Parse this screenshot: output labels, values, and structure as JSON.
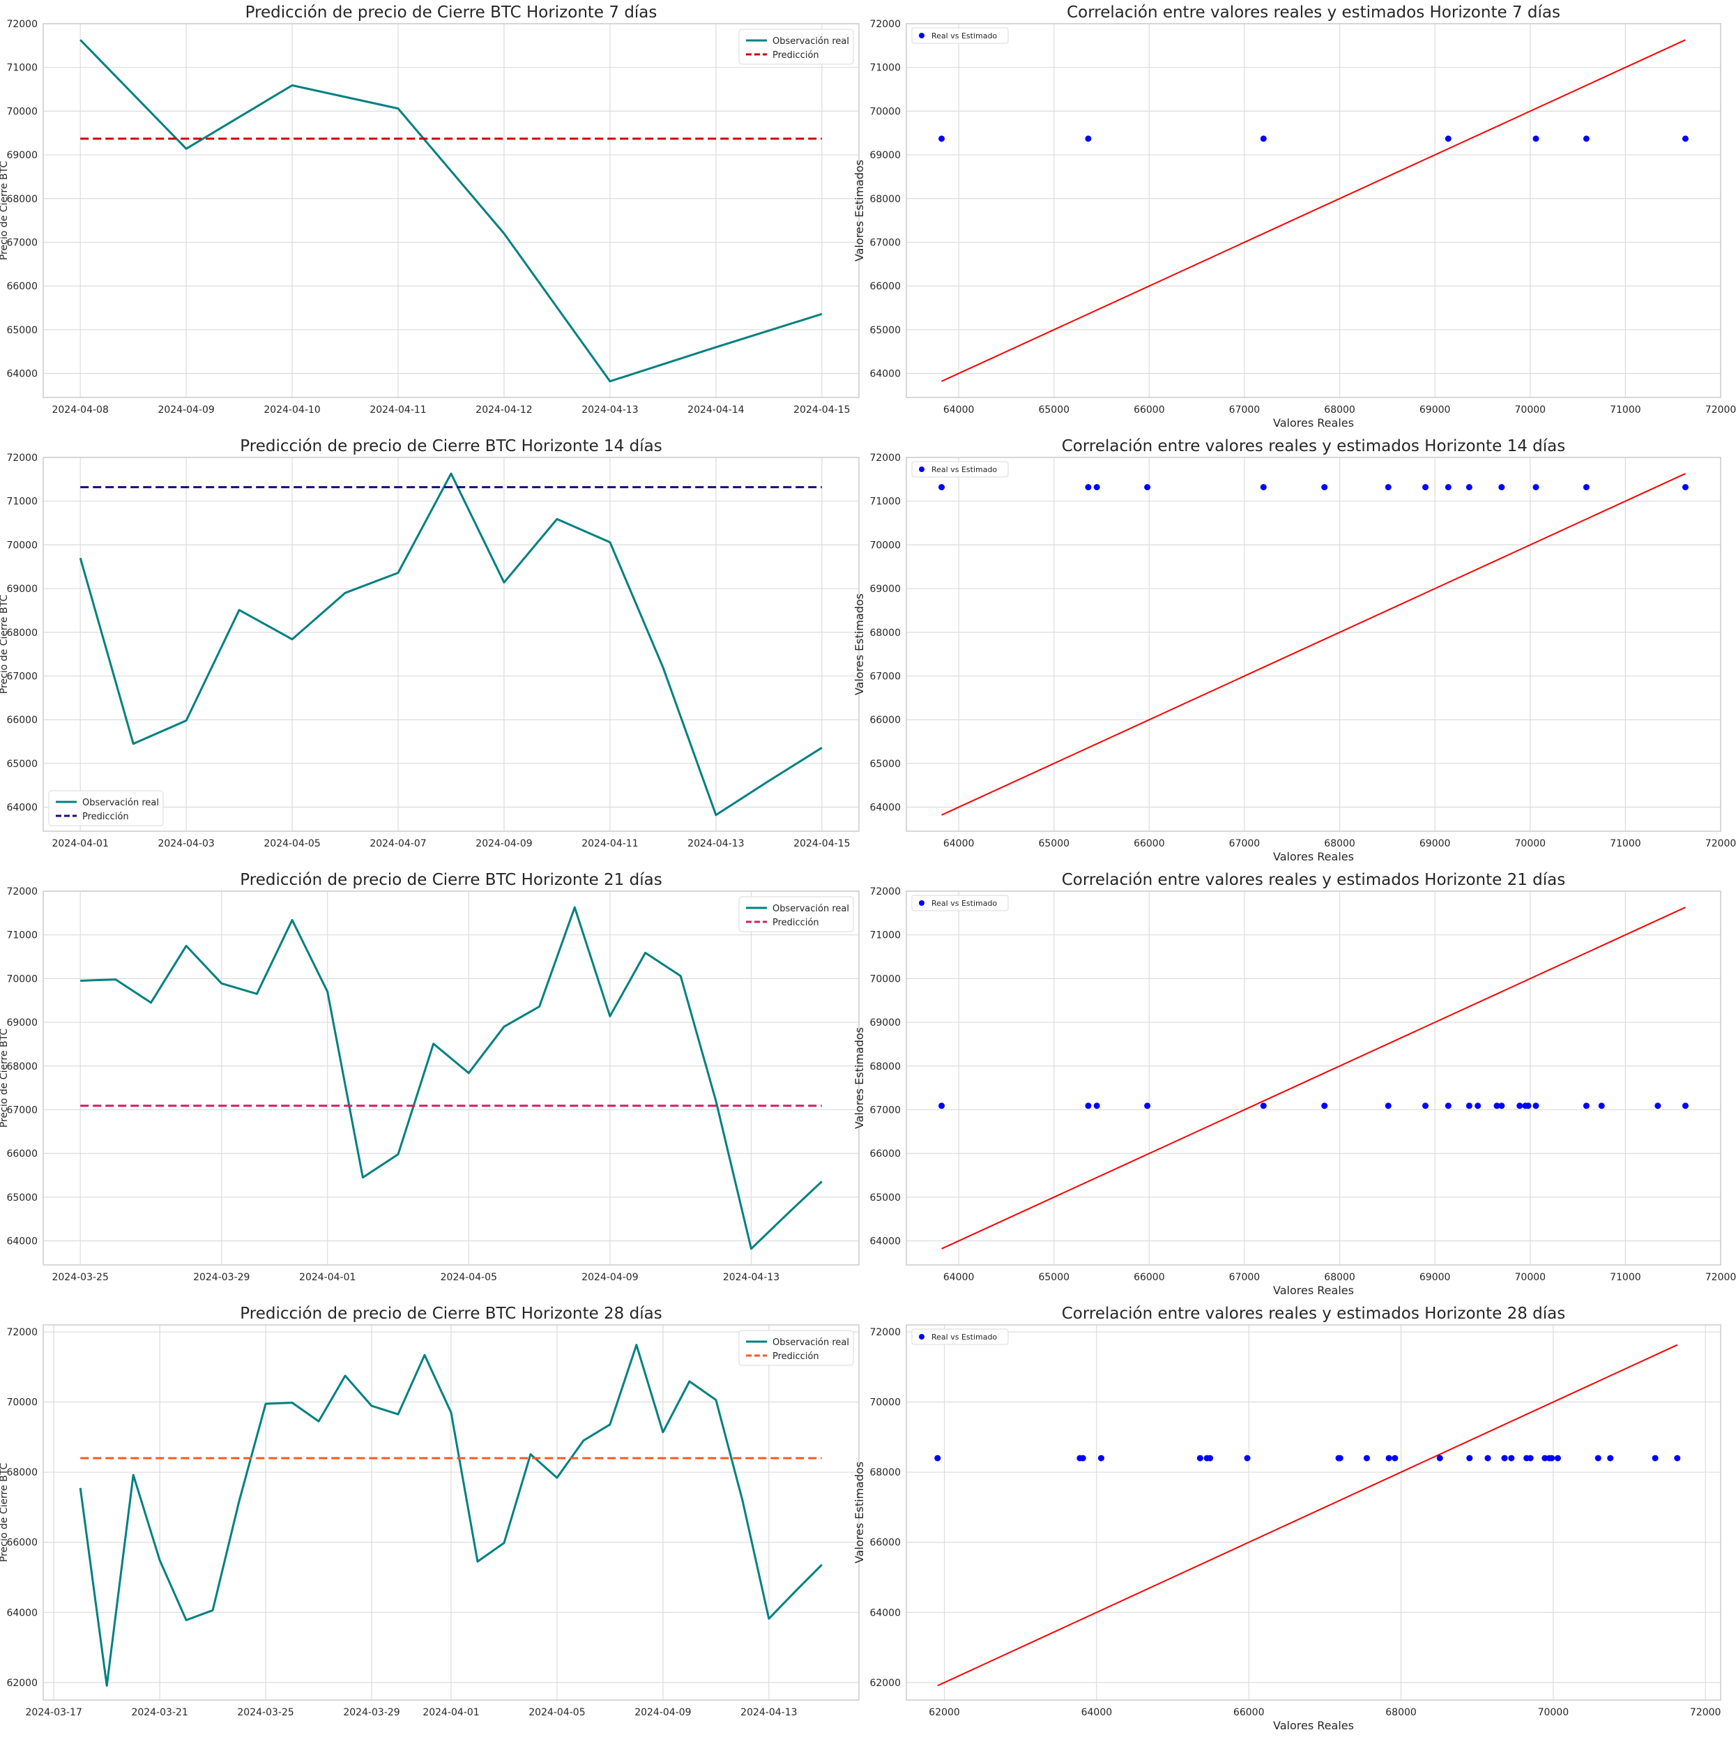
{
  "colors": {
    "observed": "#008080",
    "scatter": "#0000ff",
    "identity": "#ff0000",
    "grid": "#dcdcdc",
    "spine": "#cccccc"
  },
  "chart_data": [
    {
      "type": "line",
      "title": "Predicción de precio de Cierre BTC Horizonte 7 días",
      "xlabel": "",
      "ylabel": "Precio de Cierre BTC",
      "ylim": [
        63450,
        72000
      ],
      "yticks": [
        64000,
        65000,
        66000,
        67000,
        68000,
        69000,
        70000,
        71000,
        72000
      ],
      "x": [
        "2024-04-08",
        "2024-04-09",
        "2024-04-10",
        "2024-04-11",
        "2024-04-12",
        "2024-04-13",
        "2024-04-14",
        "2024-04-15"
      ],
      "xticks": [
        "2024-04-08",
        "2024-04-09",
        "2024-04-10",
        "2024-04-11",
        "2024-04-12",
        "2024-04-13",
        "2024-04-14",
        "2024-04-15"
      ],
      "legend": "upper-right",
      "series": [
        {
          "name": "Observación real",
          "color": "#008080",
          "dash": false,
          "values": [
            71630,
            69140,
            70590,
            70060,
            67200,
            63820,
            64600,
            65360
          ]
        },
        {
          "name": "Predicción",
          "color": "#cc0000",
          "dash": true,
          "values": [
            69370,
            69370,
            69370,
            69370,
            69370,
            69370,
            69370,
            69370
          ]
        }
      ]
    },
    {
      "type": "scatter",
      "title": "Correlación entre valores reales y estimados Horizonte 7 días",
      "xlabel": "Valores Reales",
      "ylabel": "Valores Estimados",
      "xlim": [
        63450,
        72000
      ],
      "ylim": [
        63450,
        72000
      ],
      "xticks": [
        64000,
        65000,
        66000,
        67000,
        68000,
        69000,
        70000,
        71000,
        72000
      ],
      "yticks": [
        64000,
        65000,
        66000,
        67000,
        68000,
        69000,
        70000,
        71000,
        72000
      ],
      "legend": "upper-left",
      "legend_label": "Real vs Estimado",
      "points": {
        "x": [
          63820,
          65360,
          67200,
          69140,
          70060,
          70590,
          71630
        ],
        "y": [
          69370,
          69370,
          69370,
          69370,
          69370,
          69370,
          69370
        ]
      },
      "identity_line": [
        63820,
        71630
      ]
    },
    {
      "type": "line",
      "title": "Predicción de precio de Cierre BTC Horizonte 14 días",
      "xlabel": "",
      "ylabel": "Precio de Cierre BTC",
      "ylim": [
        63450,
        72000
      ],
      "yticks": [
        64000,
        65000,
        66000,
        67000,
        68000,
        69000,
        70000,
        71000,
        72000
      ],
      "x": [
        "2024-04-01",
        "2024-04-02",
        "2024-04-03",
        "2024-04-04",
        "2024-04-05",
        "2024-04-06",
        "2024-04-07",
        "2024-04-08",
        "2024-04-09",
        "2024-04-10",
        "2024-04-11",
        "2024-04-12",
        "2024-04-13",
        "2024-04-14",
        "2024-04-15"
      ],
      "xticks": [
        "2024-04-01",
        "2024-04-03",
        "2024-04-05",
        "2024-04-07",
        "2024-04-09",
        "2024-04-11",
        "2024-04-13",
        "2024-04-15"
      ],
      "legend": "lower-left",
      "series": [
        {
          "name": "Observación real",
          "color": "#008080",
          "dash": false,
          "values": [
            69700,
            65450,
            65980,
            68510,
            67840,
            68900,
            69360,
            71630,
            69140,
            70590,
            70060,
            67200,
            63820,
            64600,
            65360
          ]
        },
        {
          "name": "Predicción",
          "color": "#1a0a80",
          "dash": true,
          "values": [
            71320,
            71320,
            71320,
            71320,
            71320,
            71320,
            71320,
            71320,
            71320,
            71320,
            71320,
            71320,
            71320,
            71320,
            71320
          ]
        }
      ]
    },
    {
      "type": "scatter",
      "title": "Correlación entre valores reales y estimados Horizonte 14 días",
      "xlabel": "Valores Reales",
      "ylabel": "Valores Estimados",
      "xlim": [
        63450,
        72000
      ],
      "ylim": [
        63450,
        72000
      ],
      "xticks": [
        64000,
        65000,
        66000,
        67000,
        68000,
        69000,
        70000,
        71000,
        72000
      ],
      "yticks": [
        64000,
        65000,
        66000,
        67000,
        68000,
        69000,
        70000,
        71000,
        72000
      ],
      "legend": "upper-left",
      "legend_label": "Real vs Estimado",
      "points": {
        "x": [
          63820,
          65360,
          65450,
          65980,
          67200,
          67840,
          68510,
          68900,
          69140,
          69360,
          69700,
          70060,
          70590,
          71630
        ],
        "y": [
          71320,
          71320,
          71320,
          71320,
          71320,
          71320,
          71320,
          71320,
          71320,
          71320,
          71320,
          71320,
          71320,
          71320
        ]
      },
      "identity_line": [
        63820,
        71630
      ]
    },
    {
      "type": "line",
      "title": "Predicción de precio de Cierre BTC Horizonte 21 días",
      "xlabel": "",
      "ylabel": "Precio de Cierre BTC",
      "ylim": [
        63450,
        72000
      ],
      "yticks": [
        64000,
        65000,
        66000,
        67000,
        68000,
        69000,
        70000,
        71000,
        72000
      ],
      "x": [
        "2024-03-25",
        "2024-03-26",
        "2024-03-27",
        "2024-03-28",
        "2024-03-29",
        "2024-03-30",
        "2024-03-31",
        "2024-04-01",
        "2024-04-02",
        "2024-04-03",
        "2024-04-04",
        "2024-04-05",
        "2024-04-06",
        "2024-04-07",
        "2024-04-08",
        "2024-04-09",
        "2024-04-10",
        "2024-04-11",
        "2024-04-12",
        "2024-04-13",
        "2024-04-14",
        "2024-04-15"
      ],
      "xticks": [
        "2024-03-25",
        "2024-03-29",
        "2024-04-01",
        "2024-04-05",
        "2024-04-09",
        "2024-04-13"
      ],
      "legend": "upper-right",
      "series": [
        {
          "name": "Observación real",
          "color": "#008080",
          "dash": false,
          "values": [
            69950,
            69980,
            69450,
            70750,
            69890,
            69650,
            71340,
            69700,
            65450,
            65980,
            68510,
            67840,
            68900,
            69360,
            71630,
            69140,
            70590,
            70060,
            67200,
            63820,
            64600,
            65360
          ]
        },
        {
          "name": "Predicción",
          "color": "#d81b60",
          "dash": true,
          "values": [
            67090,
            67090,
            67090,
            67090,
            67090,
            67090,
            67090,
            67090,
            67090,
            67090,
            67090,
            67090,
            67090,
            67090,
            67090,
            67090,
            67090,
            67090,
            67090,
            67090,
            67090,
            67090
          ]
        }
      ]
    },
    {
      "type": "scatter",
      "title": "Correlación entre valores reales y estimados Horizonte 21 días",
      "xlabel": "Valores Reales",
      "ylabel": "Valores Estimados",
      "xlim": [
        63450,
        72000
      ],
      "ylim": [
        63450,
        72000
      ],
      "xticks": [
        64000,
        65000,
        66000,
        67000,
        68000,
        69000,
        70000,
        71000,
        72000
      ],
      "yticks": [
        64000,
        65000,
        66000,
        67000,
        68000,
        69000,
        70000,
        71000,
        72000
      ],
      "legend": "upper-left",
      "legend_label": "Real vs Estimado",
      "points": {
        "x": [
          63820,
          65360,
          65450,
          65980,
          67200,
          67840,
          68510,
          68900,
          69140,
          69360,
          69450,
          69650,
          69700,
          69890,
          69950,
          69980,
          70060,
          70590,
          70750,
          71340,
          71630
        ],
        "y": [
          67090,
          67090,
          67090,
          67090,
          67090,
          67090,
          67090,
          67090,
          67090,
          67090,
          67090,
          67090,
          67090,
          67090,
          67090,
          67090,
          67090,
          67090,
          67090,
          67090,
          67090
        ]
      },
      "identity_line": [
        63820,
        71630
      ]
    },
    {
      "type": "line",
      "title": "Predicción de precio de Cierre BTC Horizonte 28 días",
      "xlabel": "",
      "ylabel": "Precio de Cierre BTC",
      "ylim": [
        61500,
        72200
      ],
      "yticks": [
        62000,
        64000,
        66000,
        68000,
        70000,
        72000
      ],
      "x": [
        "2024-03-18",
        "2024-03-19",
        "2024-03-20",
        "2024-03-21",
        "2024-03-22",
        "2024-03-23",
        "2024-03-24",
        "2024-03-25",
        "2024-03-26",
        "2024-03-27",
        "2024-03-28",
        "2024-03-29",
        "2024-03-30",
        "2024-03-31",
        "2024-04-01",
        "2024-04-02",
        "2024-04-03",
        "2024-04-04",
        "2024-04-05",
        "2024-04-06",
        "2024-04-07",
        "2024-04-08",
        "2024-04-09",
        "2024-04-10",
        "2024-04-11",
        "2024-04-12",
        "2024-04-13",
        "2024-04-14",
        "2024-04-15"
      ],
      "xticks": [
        "2024-03-17",
        "2024-03-21",
        "2024-03-25",
        "2024-03-29",
        "2024-04-01",
        "2024-04-05",
        "2024-04-09",
        "2024-04-13"
      ],
      "legend": "upper-right",
      "series": [
        {
          "name": "Observación real",
          "color": "#008080",
          "dash": false,
          "values": [
            67550,
            61910,
            67920,
            65490,
            63780,
            64060,
            67180,
            69950,
            69980,
            69450,
            70750,
            69890,
            69650,
            71340,
            69700,
            65450,
            65980,
            68510,
            67840,
            68900,
            69360,
            71630,
            69140,
            70590,
            70060,
            67200,
            63820,
            64600,
            65360
          ]
        },
        {
          "name": "Predicción",
          "color": "#ff5722",
          "dash": true,
          "values": [
            68400,
            68400,
            68400,
            68400,
            68400,
            68400,
            68400,
            68400,
            68400,
            68400,
            68400,
            68400,
            68400,
            68400,
            68400,
            68400,
            68400,
            68400,
            68400,
            68400,
            68400,
            68400,
            68400,
            68400,
            68400,
            68400,
            68400,
            68400,
            68400
          ]
        }
      ]
    },
    {
      "type": "scatter",
      "title": "Correlación entre valores reales y estimados Horizonte 28 días",
      "xlabel": "Valores Reales",
      "ylabel": "Valores Estimados",
      "xlim": [
        61500,
        72200
      ],
      "ylim": [
        61500,
        72200
      ],
      "xticks": [
        62000,
        64000,
        66000,
        68000,
        70000,
        72000
      ],
      "yticks": [
        62000,
        64000,
        66000,
        68000,
        70000,
        72000
      ],
      "legend": "upper-left",
      "legend_label": "Real vs Estimado",
      "points": {
        "x": [
          61910,
          63780,
          63820,
          64060,
          65360,
          65450,
          65490,
          65980,
          67180,
          67200,
          67550,
          67840,
          67920,
          68510,
          68900,
          69140,
          69360,
          69450,
          69650,
          69700,
          69890,
          69950,
          69980,
          70060,
          70590,
          70750,
          71340,
          71630
        ],
        "y": [
          68400,
          68400,
          68400,
          68400,
          68400,
          68400,
          68400,
          68400,
          68400,
          68400,
          68400,
          68400,
          68400,
          68400,
          68400,
          68400,
          68400,
          68400,
          68400,
          68400,
          68400,
          68400,
          68400,
          68400,
          68400,
          68400,
          68400,
          68400
        ]
      },
      "identity_line": [
        61910,
        71630
      ]
    }
  ]
}
